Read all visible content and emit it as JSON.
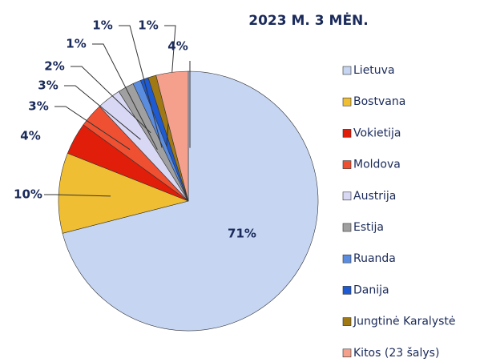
{
  "chart_data": {
    "type": "pie",
    "title": "2023 M. 3 MĖN.",
    "categories": [
      "Lietuva",
      "Bostvana",
      "Vokietija",
      "Moldova",
      "Austrija",
      "Estija",
      "Ruanda",
      "Danija",
      "Jungtinė Karalystė",
      "Kitos (23 šalys)"
    ],
    "values": [
      71,
      10,
      4,
      3,
      3,
      2,
      1,
      1,
      1,
      4
    ],
    "value_labels": [
      "71%",
      "10%",
      "4%",
      "3%",
      "3%",
      "2%",
      "1%",
      "1%",
      "1%",
      "4%"
    ],
    "colors": [
      "#c5d5f2",
      "#f0be32",
      "#e01e0a",
      "#f05032",
      "#d8d8f5",
      "#a0a0a0",
      "#5a8ce0",
      "#1e5ad2",
      "#a07814",
      "#f5a08c"
    ],
    "legend": "right"
  }
}
